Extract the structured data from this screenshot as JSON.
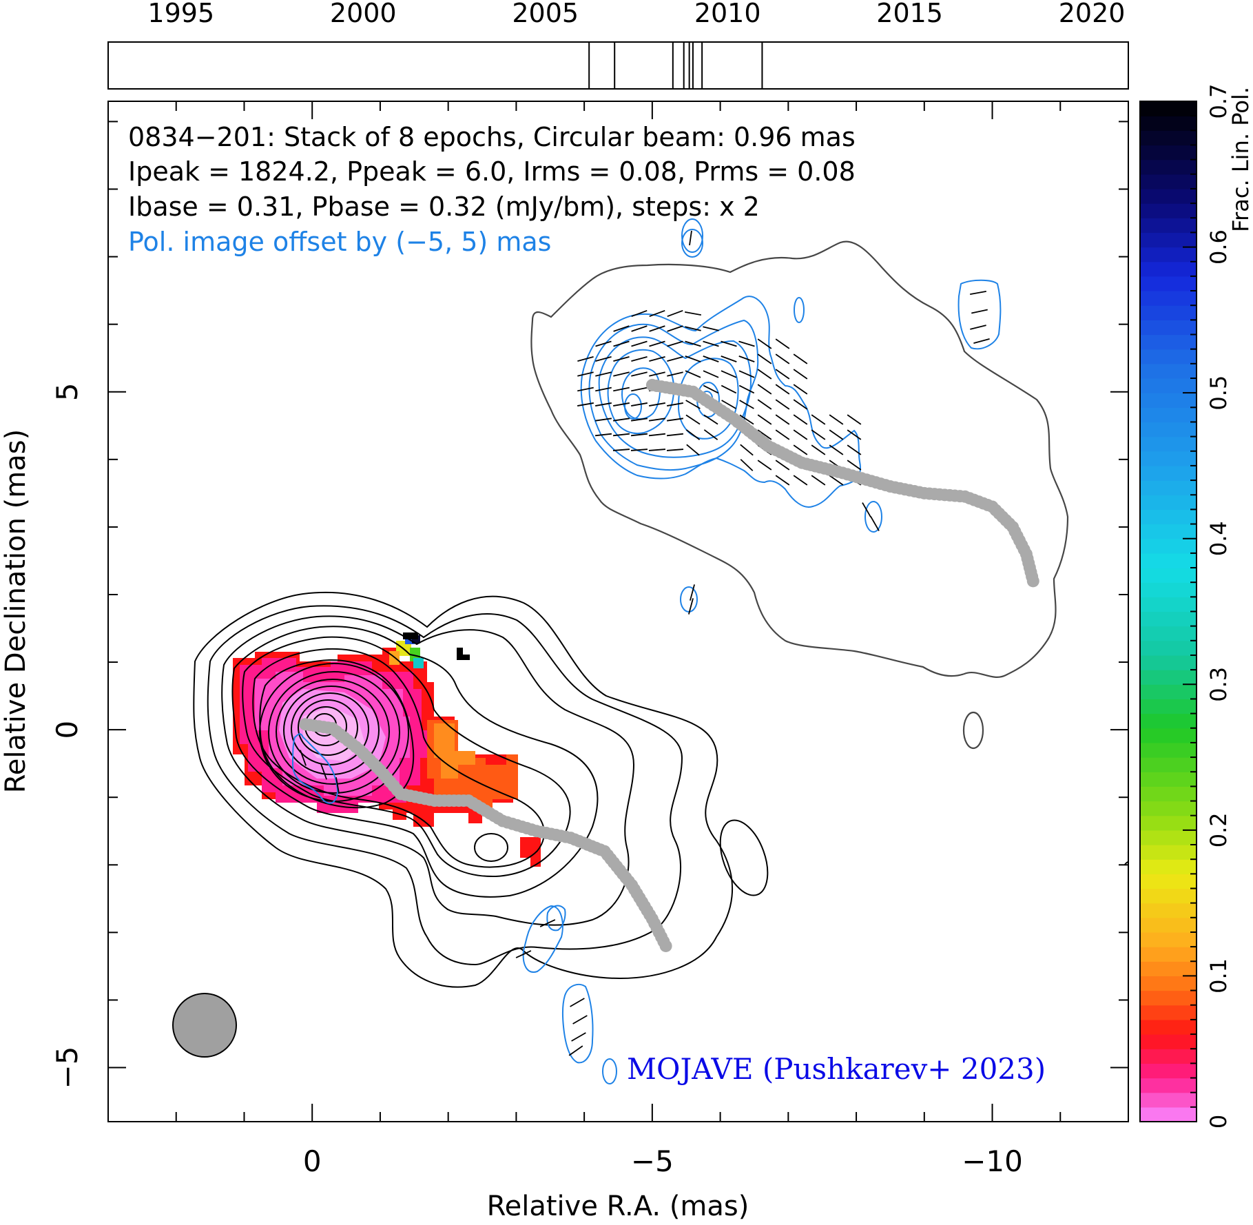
{
  "chart_data": {
    "type": "contour",
    "source": "0834−201",
    "info_lines": [
      "0834−201: Stack of 8 epochs, Circular beam: 0.96 mas",
      "Ipeak = 1824.2, Ppeak = 6.0, Irms = 0.08, Prms = 0.08",
      "Ibase = 0.31, Pbase = 0.32 (mJy/bm), steps: x 2"
    ],
    "pol_offset_note": "Pol. image offset by (−5, 5) mas",
    "credit": "MOJAVE (Pushkarev+ 2023)",
    "xlabel": "Relative R.A. (mas)",
    "ylabel": "Relative Declination (mas)",
    "colorbar_label": "Frac. Lin. Pol.",
    "xlim": [
      3,
      -12
    ],
    "ylim": [
      -5.8,
      9.3
    ],
    "x_ticks": [
      0,
      -5,
      -10
    ],
    "x_tick_labels": [
      "0",
      "−5",
      "−10"
    ],
    "y_ticks": [
      -5,
      0,
      5
    ],
    "y_tick_labels": [
      "−5",
      "0",
      "5"
    ],
    "colorbar": {
      "range": [
        0,
        0.7
      ],
      "ticks": [
        0,
        0.1,
        0.2,
        0.3,
        0.4,
        0.5,
        0.6,
        0.7
      ],
      "tick_labels": [
        "0",
        "0.1",
        "0.2",
        "0.3",
        "0.4",
        "0.5",
        "0.6",
        "0.7"
      ]
    },
    "timeline": {
      "range": [
        1993,
        2021
      ],
      "tick_years": [
        1995,
        2000,
        2005,
        2010,
        2015,
        2020
      ],
      "epochs": [
        2006.2,
        2006.9,
        2008.5,
        2008.8,
        2008.95,
        2009.05,
        2009.3,
        2010.95
      ]
    },
    "beam_fwhm_mas": 0.96,
    "core_position": [
      0,
      0
    ],
    "ridgeline": [
      [
        0.1,
        0.08
      ],
      [
        -0.3,
        0.02
      ],
      [
        -0.7,
        -0.3
      ],
      [
        -1.0,
        -0.6
      ],
      [
        -1.3,
        -0.95
      ],
      [
        -1.8,
        -1.05
      ],
      [
        -2.3,
        -1.05
      ],
      [
        -2.8,
        -1.35
      ],
      [
        -3.3,
        -1.5
      ],
      [
        -3.8,
        -1.6
      ],
      [
        -4.3,
        -1.8
      ],
      [
        -4.7,
        -2.3
      ],
      [
        -5.0,
        -2.8
      ],
      [
        -5.2,
        -3.2
      ]
    ],
    "pol_ridgeline": [
      [
        -5.0,
        5.1
      ],
      [
        -5.6,
        5.0
      ],
      [
        -6.2,
        4.6
      ],
      [
        -6.7,
        4.2
      ],
      [
        -7.2,
        3.95
      ],
      [
        -7.8,
        3.8
      ],
      [
        -8.5,
        3.6
      ],
      [
        -9.0,
        3.5
      ],
      [
        -9.6,
        3.45
      ],
      [
        -10.0,
        3.3
      ],
      [
        -10.3,
        3.0
      ],
      [
        -10.5,
        2.6
      ],
      [
        -10.6,
        2.2
      ]
    ],
    "stokes_i_contour_levels_mjy_per_beam": [
      0.31,
      0.62,
      1.24,
      2.48,
      4.96,
      9.92,
      19.84,
      39.68,
      79.36,
      158.72,
      317.44,
      634.88,
      1269.76
    ]
  }
}
